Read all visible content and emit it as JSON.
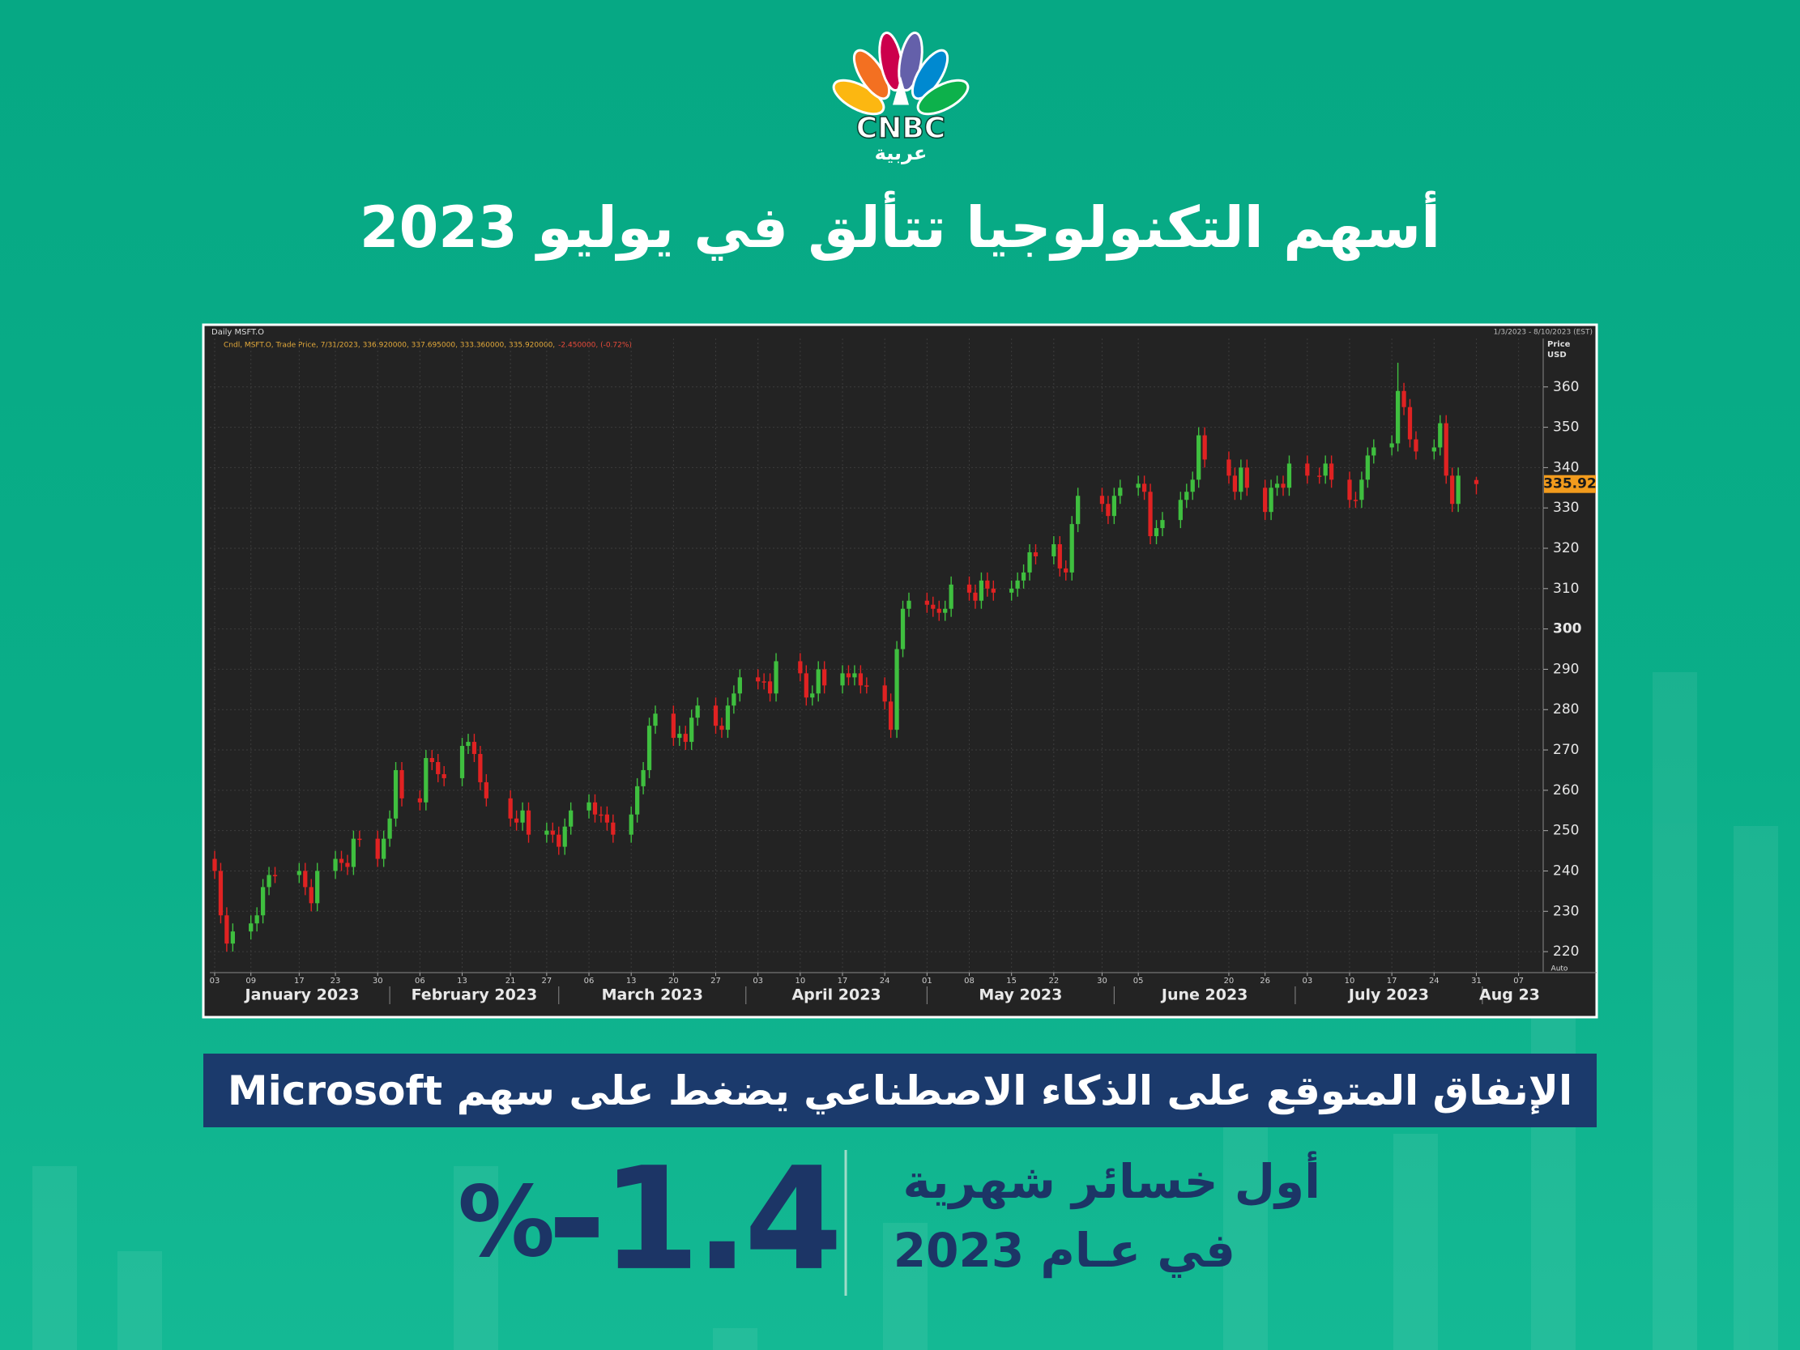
{
  "header": {
    "logo": "CNBC",
    "logo_sub": "عربية",
    "title": "أسهم التكنولوجيا تتألق في يوليو 2023"
  },
  "chart_data": {
    "type": "candlestick",
    "title": "Daily MSFT.O",
    "range_text": "1/3/2023 - 8/10/2023 (EST)",
    "y_label": "Price",
    "y_unit": "USD",
    "axis_mode": "Auto",
    "legend_text": "Cndl, MSFT.O, Trade Price, 7/31/2023, 336.920000, 337.695000, 333.360000, 335.920000,",
    "legend_change": "-2.450000, (-0.72%)",
    "up_color": "#3fbf3f",
    "down_color": "#e02222",
    "grid": true,
    "x": [
      "2023-01-03",
      "2023-01-04",
      "2023-01-05",
      "2023-01-06",
      "2023-01-09",
      "2023-01-10",
      "2023-01-11",
      "2023-01-12",
      "2023-01-13",
      "2023-01-17",
      "2023-01-18",
      "2023-01-19",
      "2023-01-20",
      "2023-01-23",
      "2023-01-24",
      "2023-01-25",
      "2023-01-26",
      "2023-01-27",
      "2023-01-30",
      "2023-01-31",
      "2023-02-01",
      "2023-02-02",
      "2023-02-03",
      "2023-02-06",
      "2023-02-07",
      "2023-02-08",
      "2023-02-09",
      "2023-02-10",
      "2023-02-13",
      "2023-02-14",
      "2023-02-15",
      "2023-02-16",
      "2023-02-17",
      "2023-02-21",
      "2023-02-22",
      "2023-02-23",
      "2023-02-24",
      "2023-02-27",
      "2023-02-28",
      "2023-03-01",
      "2023-03-02",
      "2023-03-03",
      "2023-03-06",
      "2023-03-07",
      "2023-03-08",
      "2023-03-09",
      "2023-03-10",
      "2023-03-13",
      "2023-03-14",
      "2023-03-15",
      "2023-03-16",
      "2023-03-17",
      "2023-03-20",
      "2023-03-21",
      "2023-03-22",
      "2023-03-23",
      "2023-03-24",
      "2023-03-27",
      "2023-03-28",
      "2023-03-29",
      "2023-03-30",
      "2023-03-31",
      "2023-04-03",
      "2023-04-04",
      "2023-04-05",
      "2023-04-06",
      "2023-04-10",
      "2023-04-11",
      "2023-04-12",
      "2023-04-13",
      "2023-04-14",
      "2023-04-17",
      "2023-04-18",
      "2023-04-19",
      "2023-04-20",
      "2023-04-21",
      "2023-04-24",
      "2023-04-25",
      "2023-04-26",
      "2023-04-27",
      "2023-04-28",
      "2023-05-01",
      "2023-05-02",
      "2023-05-03",
      "2023-05-04",
      "2023-05-05",
      "2023-05-08",
      "2023-05-09",
      "2023-05-10",
      "2023-05-11",
      "2023-05-12",
      "2023-05-15",
      "2023-05-16",
      "2023-05-17",
      "2023-05-18",
      "2023-05-19",
      "2023-05-22",
      "2023-05-23",
      "2023-05-24",
      "2023-05-25",
      "2023-05-26",
      "2023-05-30",
      "2023-05-31",
      "2023-06-01",
      "2023-06-02",
      "2023-06-05",
      "2023-06-06",
      "2023-06-07",
      "2023-06-08",
      "2023-06-09",
      "2023-06-12",
      "2023-06-13",
      "2023-06-14",
      "2023-06-15",
      "2023-06-16",
      "2023-06-20",
      "2023-06-21",
      "2023-06-22",
      "2023-06-23",
      "2023-06-26",
      "2023-06-27",
      "2023-06-28",
      "2023-06-29",
      "2023-06-30",
      "2023-07-03",
      "2023-07-05",
      "2023-07-06",
      "2023-07-07",
      "2023-07-10",
      "2023-07-11",
      "2023-07-12",
      "2023-07-13",
      "2023-07-14",
      "2023-07-17",
      "2023-07-18",
      "2023-07-19",
      "2023-07-20",
      "2023-07-21",
      "2023-07-24",
      "2023-07-25",
      "2023-07-26",
      "2023-07-27",
      "2023-07-28",
      "2023-07-31"
    ],
    "open": [
      243,
      240,
      229,
      222,
      225,
      227,
      229,
      236,
      239,
      239,
      240,
      236,
      232,
      240,
      243,
      242,
      241,
      248,
      248,
      243,
      248,
      253,
      265,
      258,
      257,
      268,
      267,
      264,
      263,
      271,
      272,
      269,
      262,
      258,
      253,
      252,
      255,
      249,
      250,
      249,
      246,
      251,
      255,
      257,
      254,
      254,
      252,
      249,
      254,
      261,
      265,
      276,
      279,
      273,
      274,
      272,
      278,
      281,
      276,
      275,
      281,
      284,
      288,
      287,
      287,
      284,
      292,
      289,
      283,
      284,
      290,
      286,
      289,
      288,
      289,
      286,
      286,
      282,
      275,
      295,
      305,
      307,
      306,
      305,
      304,
      305,
      311,
      309,
      307,
      312,
      310,
      309,
      310,
      312,
      314,
      319,
      318,
      321,
      315,
      314,
      326,
      333,
      331,
      328,
      333,
      335,
      336,
      334,
      323,
      325,
      327,
      332,
      334,
      337,
      348,
      342,
      338,
      334,
      340,
      335,
      329,
      335,
      336,
      335,
      341,
      338,
      338,
      341,
      337,
      332,
      332,
      337,
      343,
      345,
      346,
      359,
      355,
      347,
      344,
      345,
      351,
      338,
      331,
      336.92
    ],
    "high": [
      245,
      242,
      231,
      227,
      229,
      231,
      238,
      241,
      241,
      242,
      242,
      238,
      242,
      245,
      245,
      244,
      250,
      250,
      250,
      250,
      255,
      267,
      267,
      260,
      270,
      270,
      269,
      266,
      273,
      274,
      274,
      271,
      264,
      260,
      255,
      257,
      257,
      252,
      252,
      251,
      253,
      257,
      259,
      259,
      256,
      256,
      254,
      256,
      263,
      267,
      278,
      281,
      281,
      276,
      276,
      280,
      283,
      283,
      278,
      283,
      286,
      290,
      290,
      289,
      289,
      294,
      294,
      291,
      286,
      292,
      292,
      291,
      291,
      291,
      291,
      288,
      288,
      284,
      297,
      307,
      309,
      309,
      308,
      307,
      307,
      313,
      313,
      311,
      314,
      314,
      312,
      312,
      314,
      316,
      321,
      321,
      323,
      323,
      317,
      328,
      335,
      335,
      333,
      335,
      337,
      338,
      338,
      336,
      327,
      329,
      334,
      336,
      339,
      350,
      350,
      344,
      340,
      342,
      342,
      337,
      337,
      338,
      338,
      343,
      343,
      340,
      343,
      343,
      339,
      334,
      339,
      345,
      347,
      348,
      366,
      361,
      357,
      349,
      347,
      353,
      353,
      340,
      340,
      337.695
    ],
    "low": [
      238,
      227,
      220,
      220,
      223,
      225,
      227,
      234,
      237,
      237,
      234,
      230,
      230,
      238,
      240,
      239,
      239,
      246,
      241,
      241,
      246,
      251,
      256,
      255,
      255,
      265,
      262,
      261,
      261,
      269,
      267,
      260,
      256,
      251,
      250,
      250,
      247,
      247,
      247,
      244,
      244,
      249,
      253,
      252,
      252,
      250,
      247,
      247,
      252,
      259,
      263,
      274,
      271,
      271,
      270,
      270,
      276,
      274,
      273,
      273,
      279,
      282,
      285,
      285,
      282,
      282,
      287,
      281,
      281,
      282,
      284,
      284,
      286,
      286,
      284,
      284,
      280,
      273,
      273,
      293,
      303,
      304,
      303,
      302,
      302,
      303,
      307,
      305,
      305,
      308,
      307,
      307,
      308,
      310,
      312,
      316,
      316,
      313,
      312,
      312,
      324,
      329,
      326,
      326,
      331,
      333,
      332,
      321,
      321,
      323,
      325,
      330,
      332,
      335,
      340,
      336,
      332,
      332,
      333,
      327,
      327,
      333,
      333,
      333,
      336,
      336,
      336,
      335,
      330,
      330,
      330,
      335,
      341,
      343,
      344,
      353,
      345,
      342,
      342,
      343,
      336,
      329,
      329,
      333.36
    ],
    "close": [
      240,
      229,
      222,
      225,
      227,
      229,
      236,
      239,
      239,
      240,
      236,
      232,
      240,
      243,
      242,
      241,
      248,
      248,
      243,
      248,
      253,
      265,
      258,
      257,
      268,
      267,
      264,
      263,
      271,
      272,
      269,
      262,
      258,
      253,
      252,
      255,
      249,
      250,
      249,
      246,
      251,
      255,
      257,
      254,
      254,
      252,
      249,
      254,
      261,
      265,
      276,
      279,
      273,
      274,
      272,
      278,
      281,
      276,
      275,
      281,
      284,
      288,
      287,
      287,
      284,
      292,
      289,
      283,
      284,
      290,
      286,
      289,
      288,
      289,
      286,
      286,
      282,
      275,
      295,
      305,
      307,
      306,
      305,
      304,
      305,
      311,
      309,
      307,
      312,
      310,
      309,
      310,
      312,
      314,
      319,
      318,
      321,
      315,
      314,
      326,
      333,
      331,
      328,
      333,
      335,
      336,
      334,
      323,
      325,
      327,
      332,
      334,
      337,
      348,
      342,
      338,
      334,
      340,
      335,
      329,
      335,
      336,
      335,
      341,
      338,
      338,
      341,
      337,
      332,
      332,
      337,
      343,
      345,
      346,
      359,
      355,
      347,
      344,
      345,
      351,
      338,
      331,
      338,
      335.92
    ],
    "xlim": [
      "2023-01-03",
      "2023-08-10"
    ],
    "xticks": [
      {
        "value": "2023-01-03",
        "label": "03"
      },
      {
        "value": "2023-01-09",
        "label": "09"
      },
      {
        "value": "2023-01-17",
        "label": "17"
      },
      {
        "value": "2023-01-23",
        "label": "23"
      },
      {
        "value": "2023-01-30",
        "label": "30"
      },
      {
        "value": "2023-02-06",
        "label": "06"
      },
      {
        "value": "2023-02-13",
        "label": "13"
      },
      {
        "value": "2023-02-21",
        "label": "21"
      },
      {
        "value": "2023-02-27",
        "label": "27"
      },
      {
        "value": "2023-03-06",
        "label": "06"
      },
      {
        "value": "2023-03-13",
        "label": "13"
      },
      {
        "value": "2023-03-20",
        "label": "20"
      },
      {
        "value": "2023-03-27",
        "label": "27"
      },
      {
        "value": "2023-04-03",
        "label": "03"
      },
      {
        "value": "2023-04-10",
        "label": "10"
      },
      {
        "value": "2023-04-17",
        "label": "17"
      },
      {
        "value": "2023-04-24",
        "label": "24"
      },
      {
        "value": "2023-05-01",
        "label": "01"
      },
      {
        "value": "2023-05-08",
        "label": "08"
      },
      {
        "value": "2023-05-15",
        "label": "15"
      },
      {
        "value": "2023-05-22",
        "label": "22"
      },
      {
        "value": "2023-05-30",
        "label": "30"
      },
      {
        "value": "2023-06-05",
        "label": "05"
      },
      {
        "value": "2023-06-20",
        "label": "20"
      },
      {
        "value": "2023-06-26",
        "label": "26"
      },
      {
        "value": "2023-07-03",
        "label": "03"
      },
      {
        "value": "2023-07-10",
        "label": "10"
      },
      {
        "value": "2023-07-17",
        "label": "17"
      },
      {
        "value": "2023-07-24",
        "label": "24"
      },
      {
        "value": "2023-07-31",
        "label": "31"
      },
      {
        "value": "2023-08-07",
        "label": "07"
      }
    ],
    "month_labels": [
      {
        "value": "2023-01",
        "label": "January 2023"
      },
      {
        "value": "2023-02",
        "label": "February 2023"
      },
      {
        "value": "2023-03",
        "label": "March 2023"
      },
      {
        "value": "2023-04",
        "label": "April 2023"
      },
      {
        "value": "2023-05",
        "label": "May 2023"
      },
      {
        "value": "2023-06",
        "label": "June 2023"
      },
      {
        "value": "2023-07",
        "label": "July 2023"
      },
      {
        "value": "2023-08",
        "label": "Aug 23"
      }
    ],
    "ylim": [
      215,
      372
    ],
    "yticks": [
      220,
      230,
      240,
      250,
      260,
      270,
      280,
      290,
      300,
      310,
      320,
      330,
      340,
      350,
      360
    ]
  },
  "banner": "الإنفاق المتوقع على الذكاء الاصطناعي يضغط على سهم Microsoft",
  "stat": {
    "value": -1.4,
    "unit": "%"
  },
  "note": [
    "أول خسائر شهرية",
    "في عـام 2023"
  ]
}
